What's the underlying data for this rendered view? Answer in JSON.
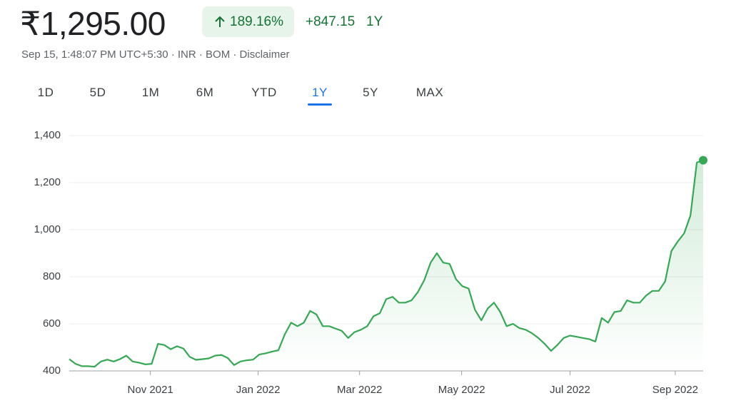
{
  "header": {
    "price": "₹1,295.00",
    "change_percent": "189.16%",
    "change": "+847.15",
    "period": "1Y",
    "meta": "Sep 15, 1:48:07 PM UTC+5:30 · INR · BOM · Disclaimer"
  },
  "tabs": [
    "1D",
    "5D",
    "1M",
    "6M",
    "YTD",
    "1Y",
    "5Y",
    "MAX"
  ],
  "selected_tab": 5,
  "chart_data": {
    "type": "line",
    "color": "#34a853",
    "grid": true,
    "xlim": [
      0,
      100
    ],
    "xticks": [
      {
        "value": 12.8,
        "label": "Nov 2021"
      },
      {
        "value": 29.8,
        "label": "Jan 2022"
      },
      {
        "value": 45.8,
        "label": "Mar 2022"
      },
      {
        "value": 61.9,
        "label": "May 2022"
      },
      {
        "value": 79.0,
        "label": "Jul 2022"
      },
      {
        "value": 95.6,
        "label": "Sep 2022"
      }
    ],
    "ylim": [
      400,
      1400
    ],
    "yticks": [
      400,
      600,
      800,
      {
        "value": 1000,
        "label": "1,000"
      },
      {
        "value": 1200,
        "label": "1,200"
      },
      {
        "value": 1400,
        "label": "1,400"
      }
    ],
    "values": [
      450,
      430,
      420,
      420,
      418,
      440,
      448,
      440,
      450,
      465,
      440,
      435,
      428,
      430,
      515,
      510,
      492,
      505,
      495,
      460,
      447,
      450,
      453,
      465,
      468,
      455,
      425,
      440,
      445,
      448,
      470,
      475,
      482,
      488,
      555,
      605,
      590,
      605,
      655,
      640,
      590,
      590,
      580,
      570,
      540,
      565,
      575,
      590,
      632,
      645,
      705,
      715,
      690,
      690,
      700,
      735,
      785,
      860,
      900,
      860,
      855,
      790,
      760,
      750,
      660,
      615,
      665,
      690,
      650,
      590,
      600,
      582,
      575,
      560,
      540,
      515,
      485,
      510,
      540,
      550,
      545,
      540,
      535,
      525,
      625,
      605,
      650,
      655,
      700,
      690,
      690,
      720,
      740,
      740,
      780,
      910,
      950,
      985,
      1060,
      1285,
      1295
    ]
  }
}
